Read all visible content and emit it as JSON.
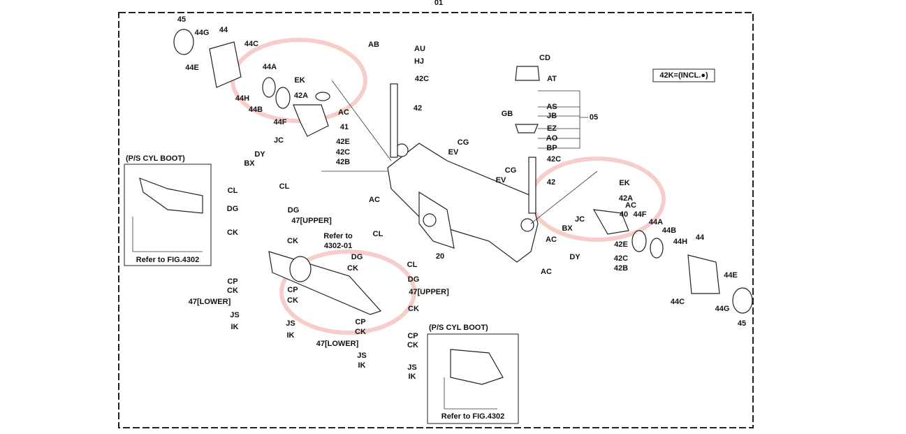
{
  "header": {
    "number": "01"
  },
  "note": "42K=(INCL.●)",
  "insets": [
    {
      "title": "(P/S CYL BOOT)",
      "reference": "Refer to FIG.4302"
    },
    {
      "title": "(P/S CYL BOOT)",
      "reference": "Refer to FIG.4302"
    }
  ],
  "callouts": [
    "45",
    "44G",
    "44",
    "44C",
    "44E",
    "44A",
    "44H",
    "44B",
    "44F",
    "EK",
    "42A",
    "AC",
    "41",
    "42E",
    "42C",
    "42B",
    "JC",
    "DY",
    "BX",
    "AB",
    "AU",
    "HJ",
    "42C",
    "42",
    "EV",
    "CG",
    "AC",
    "CL",
    "CL",
    "DG",
    "DG",
    "CK",
    "47[UPPER]",
    "Refer to",
    "4302-01",
    "CL",
    "CK",
    "DG",
    "CL",
    "CK",
    "DG",
    "47[UPPER]",
    "CP",
    "CK",
    "CP",
    "CK",
    "47[LOWER]",
    "CK",
    "JS",
    "JS",
    "IK",
    "IK",
    "CP",
    "CK",
    "CP",
    "47[LOWER]",
    "CK",
    "JS",
    "JS",
    "IK",
    "IK",
    "20",
    "CD",
    "AT",
    "AS",
    "GB",
    "JB",
    "05",
    "EZ",
    "AO",
    "BP",
    "42C",
    "CG",
    "EV",
    "42",
    "EK",
    "42A",
    "AC",
    "40",
    "44F",
    "44A",
    "44B",
    "44",
    "44H",
    "JC",
    "BX",
    "AC",
    "42E",
    "DY",
    "42C",
    "42B",
    "AC",
    "44E",
    "44C",
    "44G",
    "45"
  ]
}
